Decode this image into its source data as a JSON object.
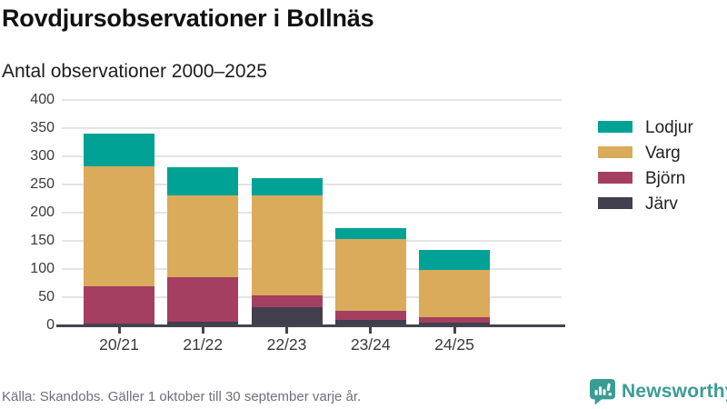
{
  "header": {
    "title": "Rovdjursobservationer i Bollnäs",
    "subtitle": "Antal observationer 2000–2025"
  },
  "footer": {
    "source": "Källa: Skandobs. Gäller 1 oktober till 30 september varje år."
  },
  "branding": {
    "name": "Newsworthy",
    "icon": "bar-chart-speech-bubble-icon",
    "color": "#3b9c94"
  },
  "colors": {
    "lodjur": "#00a296",
    "varg": "#daab5a",
    "bjorn": "#a43f62",
    "jarv": "#413f4d",
    "axis": "#45434f",
    "grid": "#e4e4e4",
    "tick_text": "#3a3a3a",
    "muted_text": "#6f6f7a"
  },
  "chart_data": {
    "type": "bar",
    "stacked": true,
    "title": "Rovdjursobservationer i Bollnäs",
    "subtitle": "Antal observationer 2000–2025",
    "xlabel": "",
    "ylabel": "",
    "categories": [
      "20/21",
      "21/22",
      "22/23",
      "23/24",
      "24/25"
    ],
    "series": [
      {
        "name": "Järv",
        "color": "#413f4d",
        "values": [
          4,
          7,
          33,
          10,
          5
        ]
      },
      {
        "name": "Björn",
        "color": "#a43f62",
        "values": [
          66,
          78,
          21,
          16,
          10
        ]
      },
      {
        "name": "Varg",
        "color": "#daab5a",
        "values": [
          212,
          145,
          176,
          128,
          83
        ]
      },
      {
        "name": "Lodjur",
        "color": "#00a296",
        "values": [
          58,
          50,
          32,
          18,
          36
        ]
      }
    ],
    "totals": [
      340,
      280,
      262,
      172,
      134
    ],
    "legend_order": [
      "Lodjur",
      "Varg",
      "Björn",
      "Järv"
    ],
    "legend_position": "right",
    "ylim": [
      0,
      400
    ],
    "yticks": [
      0,
      50,
      100,
      150,
      200,
      250,
      300,
      350,
      400
    ],
    "grid": "horizontal"
  }
}
